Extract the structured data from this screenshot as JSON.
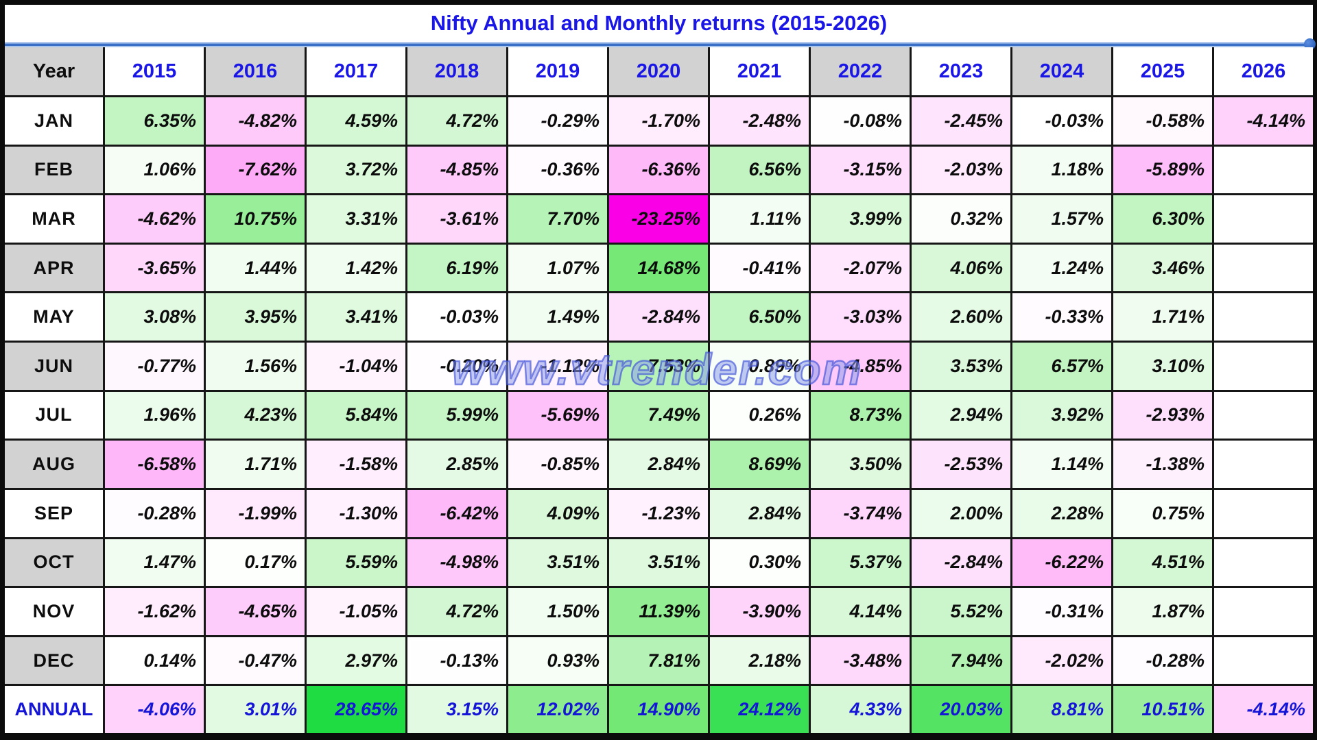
{
  "title": "Nifty Annual and Monthly returns (2015-2026)",
  "watermark_text": "www.vtrender.com",
  "header": {
    "year_label": "Year",
    "gray_flags": [
      false,
      true,
      false,
      true,
      false,
      true,
      false,
      true,
      false,
      true,
      false,
      false
    ]
  },
  "colors": {
    "accent_blue": "#1a16e6",
    "annual_blue": "#1515d8",
    "header_gray": "#d2d2d2",
    "grid_line": "#161616",
    "panel_white": "#ffffff",
    "divider_blue": "#3a6fc8"
  },
  "chart_data": {
    "type": "heatmap",
    "title": "Nifty Annual and Monthly returns (2015-2026)",
    "unit": "%",
    "legend_position": "none",
    "grid": true,
    "columns": [
      "2015",
      "2016",
      "2017",
      "2018",
      "2019",
      "2020",
      "2021",
      "2022",
      "2023",
      "2024",
      "2025",
      "2026"
    ],
    "rows": [
      "JAN",
      "FEB",
      "MAR",
      "APR",
      "MAY",
      "JUN",
      "JUL",
      "AUG",
      "SEP",
      "OCT",
      "NOV",
      "DEC",
      "ANNUAL"
    ],
    "row_gray_flags": [
      false,
      true,
      false,
      true,
      false,
      true,
      false,
      true,
      false,
      true,
      false,
      true,
      false
    ],
    "matrix": [
      [
        6.35,
        -4.82,
        4.59,
        4.72,
        -0.29,
        -1.7,
        -2.48,
        -0.08,
        -2.45,
        -0.03,
        -0.58,
        -4.14
      ],
      [
        1.06,
        -7.62,
        3.72,
        -4.85,
        -0.36,
        -6.36,
        6.56,
        -3.15,
        -2.03,
        1.18,
        -5.89,
        null
      ],
      [
        -4.62,
        10.75,
        3.31,
        -3.61,
        7.7,
        -23.25,
        1.11,
        3.99,
        0.32,
        1.57,
        6.3,
        null
      ],
      [
        -3.65,
        1.44,
        1.42,
        6.19,
        1.07,
        14.68,
        -0.41,
        -2.07,
        4.06,
        1.24,
        3.46,
        null
      ],
      [
        3.08,
        3.95,
        3.41,
        -0.03,
        1.49,
        -2.84,
        6.5,
        -3.03,
        2.6,
        -0.33,
        1.71,
        null
      ],
      [
        -0.77,
        1.56,
        -1.04,
        -0.2,
        -1.12,
        7.53,
        0.89,
        -4.85,
        3.53,
        6.57,
        3.1,
        null
      ],
      [
        1.96,
        4.23,
        5.84,
        5.99,
        -5.69,
        7.49,
        0.26,
        8.73,
        2.94,
        3.92,
        -2.93,
        null
      ],
      [
        -6.58,
        1.71,
        -1.58,
        2.85,
        -0.85,
        2.84,
        8.69,
        3.5,
        -2.53,
        1.14,
        -1.38,
        null
      ],
      [
        -0.28,
        -1.99,
        -1.3,
        -6.42,
        4.09,
        -1.23,
        2.84,
        -3.74,
        2.0,
        2.28,
        0.75,
        null
      ],
      [
        1.47,
        0.17,
        5.59,
        -4.98,
        3.51,
        3.51,
        0.3,
        5.37,
        -2.84,
        -6.22,
        4.51,
        null
      ],
      [
        -1.62,
        -4.65,
        -1.05,
        4.72,
        1.5,
        11.39,
        -3.9,
        4.14,
        5.52,
        -0.31,
        1.87,
        null
      ],
      [
        0.14,
        -0.47,
        2.97,
        -0.13,
        0.93,
        7.81,
        2.18,
        -3.48,
        7.94,
        -2.02,
        -0.28,
        null
      ],
      [
        -4.06,
        3.01,
        28.65,
        3.15,
        12.02,
        14.9,
        24.12,
        4.33,
        20.03,
        8.81,
        10.51,
        -4.14
      ]
    ],
    "color_scale": {
      "positive_base": "#1edc42",
      "positive_mid": "#77e877",
      "negative_base": "#fa00e6",
      "positive_max": 28.65,
      "negative_max": 23.25
    }
  }
}
